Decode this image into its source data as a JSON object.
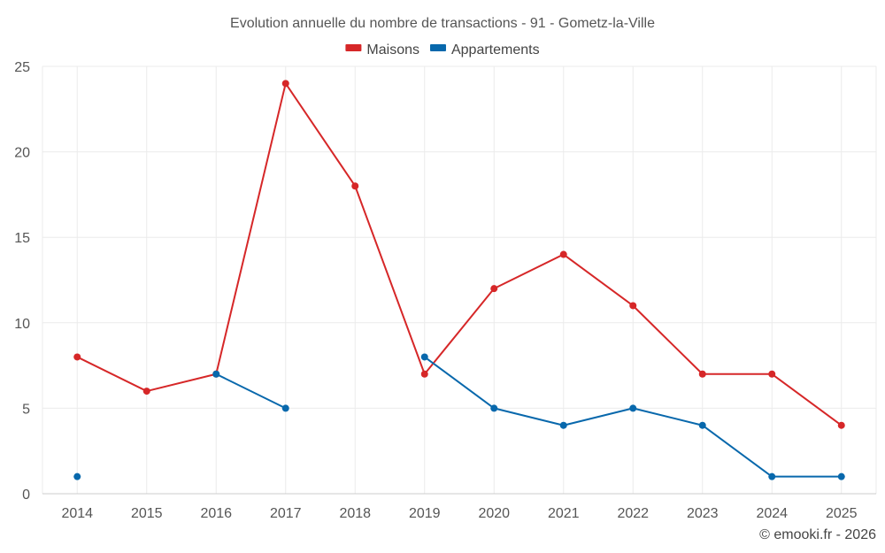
{
  "chart_data": {
    "type": "line",
    "title": "Evolution annuelle du nombre de transactions - 91 - Gometz-la-Ville",
    "categories": [
      "2014",
      "2015",
      "2016",
      "2017",
      "2018",
      "2019",
      "2020",
      "2021",
      "2022",
      "2023",
      "2024",
      "2025"
    ],
    "ylim": [
      0,
      25
    ],
    "yticks": [
      0,
      5,
      10,
      15,
      20,
      25
    ],
    "legend_position": "top-center",
    "grid": true,
    "series": [
      {
        "name": "Maisons",
        "color": "#d62728",
        "values": [
          8,
          6,
          7,
          24,
          18,
          7,
          12,
          14,
          11,
          7,
          7,
          4
        ]
      },
      {
        "name": "Appartements",
        "color": "#0868ac",
        "values": [
          1,
          null,
          7,
          5,
          null,
          8,
          5,
          4,
          5,
          4,
          1,
          1
        ]
      }
    ]
  },
  "credit": "© emooki.fr - 2026"
}
